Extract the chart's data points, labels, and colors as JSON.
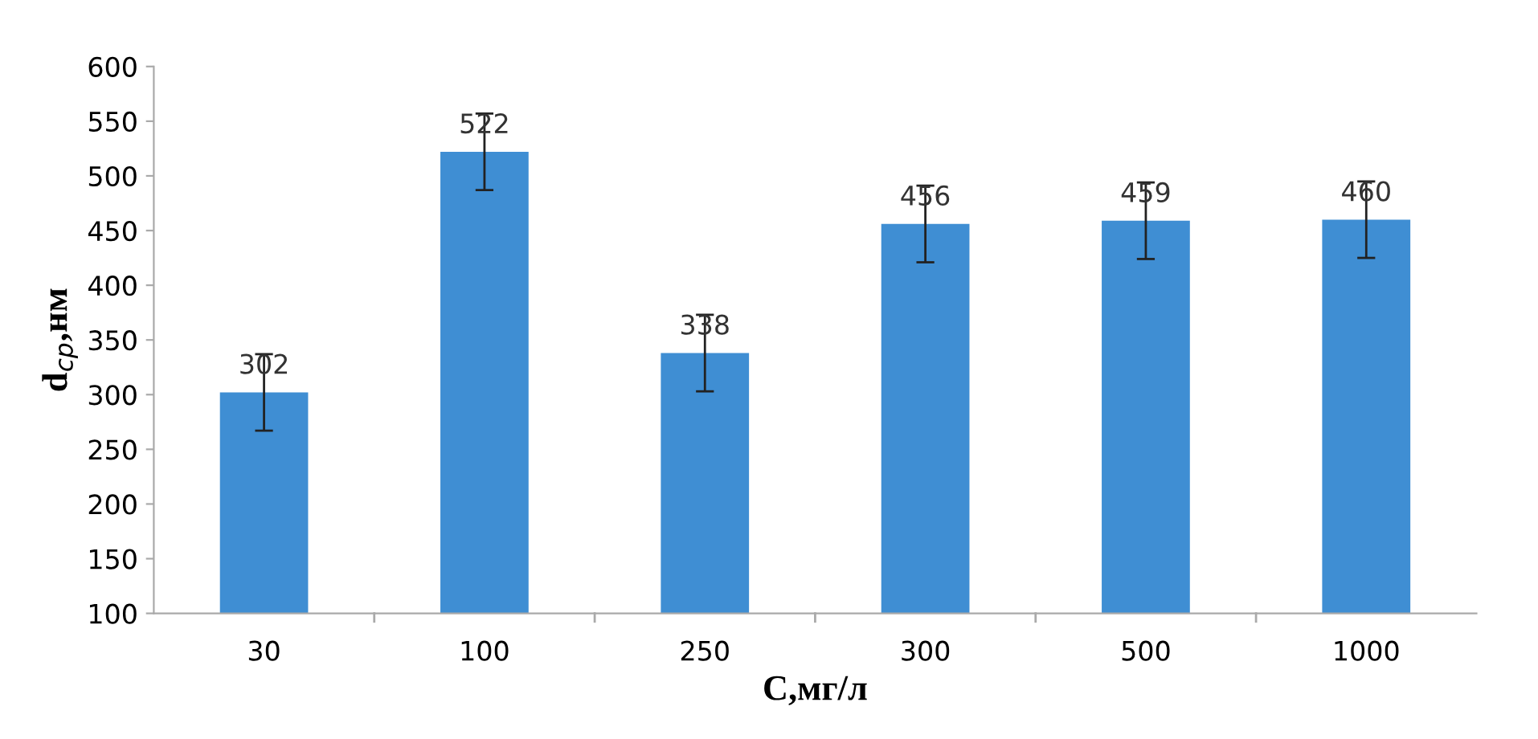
{
  "chart_data": {
    "type": "bar",
    "xlabel": "C,мг/л",
    "ylabel": "d$_{ср}$,нм",
    "categories": [
      "30",
      "100",
      "250",
      "300",
      "500",
      "1000"
    ],
    "values": [
      302,
      522,
      338,
      456,
      459,
      460
    ],
    "errors": [
      35,
      35,
      35,
      35,
      35,
      35
    ],
    "color": "#3f8ed3",
    "ylim": [
      100,
      600
    ],
    "yticks": [
      100,
      150,
      200,
      250,
      300,
      350,
      400,
      450,
      500,
      550,
      600
    ],
    "data_labels": true,
    "grid": false,
    "legend": false
  }
}
